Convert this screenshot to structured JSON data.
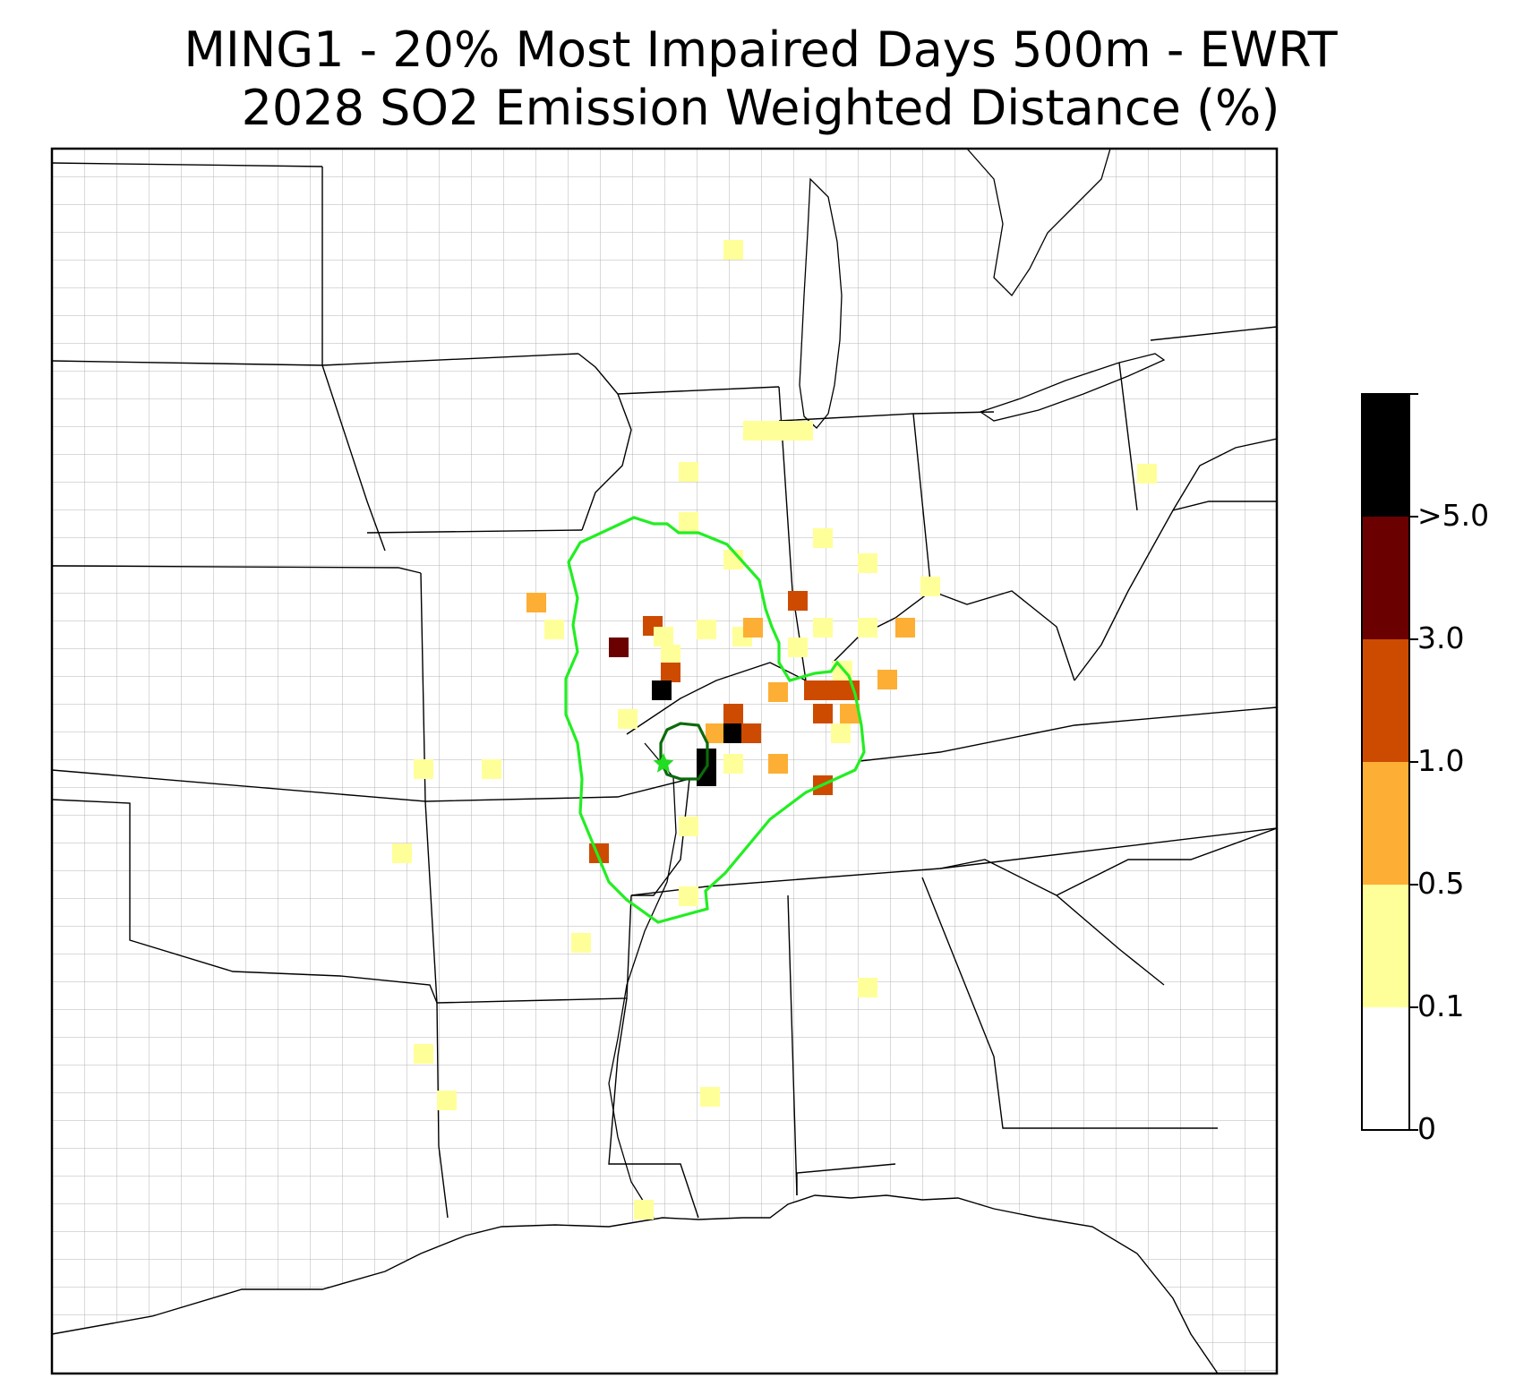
{
  "title": {
    "line1": "MING1 - 20% Most Impaired Days 500m - EWRT",
    "line2": "2028 SO2 Emission Weighted Distance (%)"
  },
  "colorbar": {
    "bins": [
      {
        "from": 0,
        "to": 0.1,
        "color": "#ffffff"
      },
      {
        "from": 0.1,
        "to": 0.5,
        "color": "#ffff99"
      },
      {
        "from": 0.5,
        "to": 1.0,
        "color": "#fdae35"
      },
      {
        "from": 1.0,
        "to": 3.0,
        "color": "#cc4b00"
      },
      {
        "from": 3.0,
        "to": 5.0,
        "color": "#6b0000"
      },
      {
        "from": 5.0,
        "to": null,
        "color": "#000000"
      }
    ],
    "tick_labels": [
      "0",
      "0.1",
      "0.5",
      "1.0",
      "3.0",
      ">5.0"
    ]
  },
  "map": {
    "site_marker": "star-icon",
    "site_marker_color": "#22dd22",
    "contour_outer_color": "#22ee22",
    "contour_inner_color": "#0b6b0b",
    "state_border_color": "#000000",
    "county_border_color": "#9a9a9a"
  }
}
